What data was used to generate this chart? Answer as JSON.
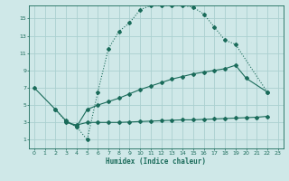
{
  "xlabel": "Humidex (Indice chaleur)",
  "bg_color": "#cfe8e8",
  "grid_color": "#aad0d0",
  "line_color": "#1a6b5a",
  "xlim": [
    -0.5,
    23.5
  ],
  "ylim": [
    0,
    16.5
  ],
  "yticks": [
    1,
    3,
    5,
    7,
    9,
    11,
    13,
    15
  ],
  "xticks": [
    0,
    1,
    2,
    3,
    4,
    5,
    6,
    7,
    8,
    9,
    10,
    11,
    12,
    13,
    14,
    15,
    16,
    17,
    18,
    19,
    20,
    21,
    22,
    23
  ],
  "line1_x": [
    2,
    3,
    4,
    5,
    6,
    7,
    8,
    9,
    10,
    11,
    12,
    13,
    14,
    15,
    16,
    17,
    18,
    19,
    22
  ],
  "line1_y": [
    4.5,
    3.1,
    2.5,
    1.0,
    6.5,
    11.5,
    13.5,
    14.5,
    16.0,
    16.5,
    16.5,
    16.5,
    16.5,
    16.3,
    15.5,
    14.0,
    12.5,
    12.0,
    6.5
  ],
  "line2_x": [
    0,
    2,
    3,
    4,
    5,
    6,
    7,
    8,
    9,
    10,
    11,
    12,
    13,
    14,
    15,
    16,
    17,
    18,
    19,
    20,
    22
  ],
  "line2_y": [
    7.0,
    4.5,
    3.2,
    2.5,
    4.5,
    5.0,
    5.4,
    5.8,
    6.3,
    6.8,
    7.2,
    7.6,
    8.0,
    8.3,
    8.6,
    8.8,
    9.0,
    9.2,
    9.6,
    8.1,
    6.5
  ],
  "line3_x": [
    3,
    4,
    5,
    6,
    7,
    8,
    9,
    10,
    11,
    12,
    13,
    14,
    15,
    16,
    17,
    18,
    19,
    20,
    21,
    22
  ],
  "line3_y": [
    3.0,
    2.7,
    3.0,
    3.0,
    3.0,
    3.0,
    3.05,
    3.1,
    3.15,
    3.2,
    3.25,
    3.3,
    3.3,
    3.35,
    3.4,
    3.45,
    3.5,
    3.55,
    3.6,
    3.7
  ]
}
